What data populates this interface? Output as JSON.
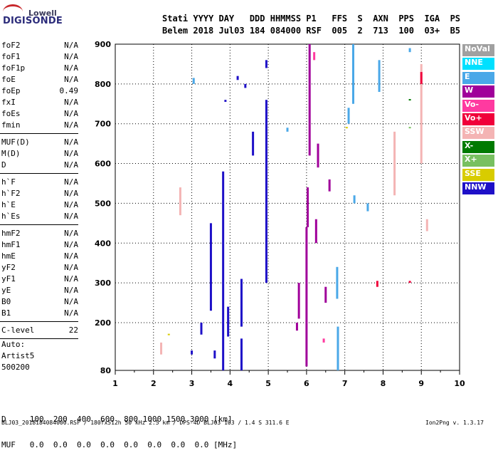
{
  "logo": {
    "line1": "Lowell",
    "line2": "DIGISONDE"
  },
  "header": {
    "line1": "Stati YYYY DAY   DDD HHMMSS P1   FFS  S  AXN  PPS  IGA  PS",
    "line2": "Belem 2018 Jul03 184 084000 RSF  005  2  713  100  03+  B5"
  },
  "params": {
    "group1": [
      {
        "name": "foF2",
        "value": "N/A"
      },
      {
        "name": "foF1",
        "value": "N/A"
      },
      {
        "name": "foF1p",
        "value": "N/A"
      },
      {
        "name": "foE",
        "value": "N/A"
      },
      {
        "name": "foEp",
        "value": "0.49"
      },
      {
        "name": "fxI",
        "value": "N/A"
      },
      {
        "name": "foEs",
        "value": "N/A"
      },
      {
        "name": "fmin",
        "value": "N/A"
      }
    ],
    "group2": [
      {
        "name": "MUF(D)",
        "value": "N/A"
      },
      {
        "name": "M(D)",
        "value": "N/A"
      },
      {
        "name": "D",
        "value": "N/A"
      }
    ],
    "group3": [
      {
        "name": "h`F",
        "value": "N/A"
      },
      {
        "name": "h`F2",
        "value": "N/A"
      },
      {
        "name": "h`E",
        "value": "N/A"
      },
      {
        "name": "h`Es",
        "value": "N/A"
      }
    ],
    "group4": [
      {
        "name": "hmF2",
        "value": "N/A"
      },
      {
        "name": "hmF1",
        "value": "N/A"
      },
      {
        "name": "hmE",
        "value": "N/A"
      },
      {
        "name": "yF2",
        "value": "N/A"
      },
      {
        "name": "yF1",
        "value": "N/A"
      },
      {
        "name": "yE",
        "value": "N/A"
      },
      {
        "name": "B0",
        "value": "N/A"
      },
      {
        "name": "B1",
        "value": "N/A"
      }
    ],
    "clevel": {
      "name": "C-level",
      "value": "22"
    },
    "auto": [
      "Auto:",
      "Artist5",
      "500200"
    ]
  },
  "legend": [
    {
      "label": "NoVal",
      "color": "#a0a0a0"
    },
    {
      "label": "NNE",
      "color": "#00e0ff"
    },
    {
      "label": "E",
      "color": "#4aa8e8"
    },
    {
      "label": "W",
      "color": "#a0009a"
    },
    {
      "label": "Vo-",
      "color": "#ff3aa0"
    },
    {
      "label": "Vo+",
      "color": "#f0003a"
    },
    {
      "label": "SSW",
      "color": "#f4b4b4"
    },
    {
      "label": "X-",
      "color": "#007a00"
    },
    {
      "label": "X+",
      "color": "#78c060"
    },
    {
      "label": "SSE",
      "color": "#d8cc00"
    },
    {
      "label": "NNW",
      "color": "#1e10c8"
    }
  ],
  "bottom_table": {
    "line1": "D     100  200  400  600  800 1000 1500 3000 [km]",
    "line2": "MUF   0.0  0.0  0.0  0.0  0.0  0.0  0.0  0.0 [MHz]"
  },
  "footer": {
    "left": "BLJ03_2018184084000.RSF / 180fx512h 50 kHz 2.5 km / DPS-4D BLJ03 103 / 1.4 S 311.6 E",
    "right": "Ion2Png v. 1.3.17"
  },
  "chart_data": {
    "type": "scatter",
    "title": "",
    "xlabel": "",
    "ylabel": "",
    "xlim": [
      1,
      10
    ],
    "ylim": [
      80,
      900
    ],
    "xticks": [
      "1",
      "2",
      "3",
      "4",
      "5",
      "6",
      "7",
      "8",
      "9",
      "10"
    ],
    "yticks": [
      "80",
      "200",
      "300",
      "400",
      "500",
      "600",
      "700",
      "800",
      "900"
    ],
    "grid": true,
    "series": [
      {
        "name": "NNW",
        "color": "#1e10c8",
        "segments": [
          [
            3.82,
            80,
            580
          ],
          [
            4.95,
            300,
            760
          ],
          [
            3.5,
            230,
            450
          ],
          [
            4.3,
            80,
            160
          ],
          [
            4.3,
            190,
            310
          ],
          [
            3.88,
            755,
            760
          ],
          [
            4.6,
            620,
            680
          ],
          [
            3.25,
            170,
            200
          ],
          [
            3.95,
            165,
            240
          ],
          [
            4.95,
            840,
            860
          ],
          [
            4.4,
            790,
            800
          ],
          [
            4.2,
            810,
            820
          ],
          [
            3.6,
            110,
            130
          ],
          [
            3.0,
            120,
            130
          ]
        ]
      },
      {
        "name": "W",
        "color": "#a0009a",
        "segments": [
          [
            6.03,
            440,
            540
          ],
          [
            6.0,
            90,
            440
          ],
          [
            6.08,
            620,
            900
          ],
          [
            6.3,
            590,
            650
          ],
          [
            5.8,
            210,
            300
          ],
          [
            6.5,
            250,
            290
          ],
          [
            6.25,
            400,
            460
          ],
          [
            6.6,
            530,
            560
          ],
          [
            5.75,
            180,
            200
          ]
        ]
      },
      {
        "name": "E",
        "color": "#4aa8e8",
        "segments": [
          [
            6.82,
            80,
            190
          ],
          [
            7.22,
            750,
            900
          ],
          [
            7.1,
            700,
            740
          ],
          [
            6.8,
            260,
            340
          ],
          [
            7.9,
            780,
            860
          ],
          [
            7.25,
            500,
            520
          ],
          [
            7.6,
            480,
            500
          ],
          [
            8.7,
            880,
            890
          ],
          [
            3.05,
            800,
            815
          ],
          [
            5.5,
            680,
            690
          ]
        ]
      },
      {
        "name": "SSW",
        "color": "#f4b4b4",
        "segments": [
          [
            2.7,
            470,
            540
          ],
          [
            8.3,
            520,
            680
          ],
          [
            9.0,
            600,
            850
          ],
          [
            2.2,
            120,
            150
          ],
          [
            9.15,
            430,
            460
          ]
        ]
      },
      {
        "name": "Vo+",
        "color": "#f0003a",
        "segments": [
          [
            7.85,
            290,
            305
          ],
          [
            9.0,
            800,
            830
          ],
          [
            8.7,
            300,
            305
          ]
        ]
      },
      {
        "name": "X-",
        "color": "#007a00",
        "segments": [
          [
            8.7,
            760,
            762
          ]
        ]
      },
      {
        "name": "X+",
        "color": "#78c060",
        "segments": [
          [
            8.7,
            690,
            692
          ]
        ]
      },
      {
        "name": "SSE",
        "color": "#d8cc00",
        "segments": [
          [
            7.05,
            690,
            692
          ],
          [
            2.4,
            170,
            172
          ]
        ]
      },
      {
        "name": "Vo-",
        "color": "#ff3aa0",
        "segments": [
          [
            6.2,
            860,
            880
          ],
          [
            6.45,
            150,
            160
          ]
        ]
      }
    ]
  }
}
